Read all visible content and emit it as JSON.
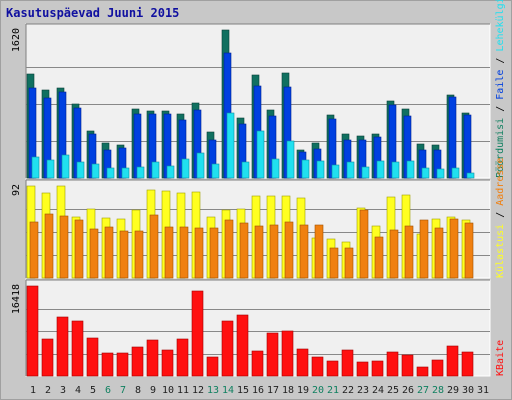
{
  "title": "Kasutuspäevad Juuni 2015",
  "colors": {
    "background": "#c8c8c8",
    "panel": "#f0f0f0",
    "grid": "#888888",
    "title": "#1010a0",
    "hits": "#107060",
    "files": "#0040e0",
    "pages": "#20e0f0",
    "visits": "#ffff20",
    "sites": "#f08010",
    "kbytes": "#ff1010",
    "weekend": "#108060",
    "weekday": "#202020"
  },
  "chart_data": {
    "type": "bar",
    "x": [
      "1",
      "2",
      "3",
      "4",
      "5",
      "6",
      "7",
      "8",
      "9",
      "10",
      "11",
      "12",
      "13",
      "14",
      "15",
      "16",
      "17",
      "18",
      "19",
      "20",
      "21",
      "22",
      "23",
      "24",
      "25",
      "26",
      "27",
      "28",
      "29",
      "30",
      "31"
    ],
    "weekend_days": [
      "6",
      "7",
      "13",
      "14",
      "20",
      "21",
      "27",
      "28"
    ],
    "panels": [
      {
        "scale_label": "1620",
        "scale_value": 1620,
        "legend": [
          {
            "text": "Pöördumisi",
            "color": "#108060"
          },
          {
            "text": "Faile",
            "color": "#0040e0"
          },
          {
            "text": "Lehekülgi",
            "color": "#20e0f0"
          }
        ],
        "series": [
          {
            "name": "Pöördumisi",
            "values": [
              1140,
              960,
              990,
              810,
              510,
              380,
              360,
              750,
              730,
              730,
              700,
              820,
              500,
              1620,
              660,
              1130,
              740,
              1150,
              310,
              380,
              690,
              480,
              460,
              480,
              840,
              750,
              370,
              360,
              910,
              710,
              0
            ]
          },
          {
            "name": "Faile",
            "values": [
              990,
              880,
              940,
              770,
              480,
              310,
              330,
              700,
              700,
              700,
              630,
              740,
              420,
              1370,
              590,
              1010,
              680,
              1000,
              290,
              320,
              650,
              420,
              420,
              450,
              800,
              680,
              310,
              310,
              890,
              690,
              0
            ]
          },
          {
            "name": "Lehekülgi",
            "values": [
              230,
              200,
              250,
              170,
              150,
              110,
              110,
              120,
              180,
              130,
              210,
              270,
              150,
              710,
              180,
              510,
              210,
              400,
              200,
              190,
              140,
              180,
              120,
              190,
              180,
              190,
              110,
              100,
              110,
              60,
              0
            ]
          }
        ]
      },
      {
        "scale_label": "92",
        "scale_value": 92,
        "legend": [
          {
            "text": "Külastusi",
            "color": "#ffff20"
          },
          {
            "text": "Aadresse",
            "color": "#f08010"
          }
        ],
        "series": [
          {
            "name": "Külastusi",
            "values": [
              92,
              85,
              92,
              61,
              69,
              60,
              59,
              68,
              88,
              87,
              85,
              86,
              61,
              68,
              69,
              82,
              82,
              82,
              80,
              40,
              39,
              36,
              70,
              52,
              81,
              83,
              44,
              59,
              61,
              58,
              0
            ]
          },
          {
            "name": "Aadresse",
            "values": [
              56,
              64,
              62,
              58,
              49,
              51,
              47,
              47,
              63,
              51,
              51,
              50,
              50,
              58,
              55,
              52,
              53,
              56,
              53,
              53,
              30,
              30,
              68,
              41,
              48,
              52,
              58,
              50,
              59,
              55,
              0
            ]
          }
        ]
      },
      {
        "scale_label": "16418",
        "scale_value": 16418,
        "legend": [
          {
            "text": "KBaite",
            "color": "#ff1010"
          }
        ],
        "series": [
          {
            "name": "KBaite",
            "values": [
              16418,
              6700,
              10800,
              10000,
              7000,
              4200,
              4200,
              5300,
              6600,
              4800,
              6800,
              15500,
              3400,
              10000,
              11200,
              4600,
              7800,
              8300,
              5000,
              3400,
              2800,
              4800,
              2500,
              2700,
              4300,
              3900,
              1600,
              2900,
              5400,
              4400,
              0
            ]
          }
        ]
      }
    ]
  }
}
